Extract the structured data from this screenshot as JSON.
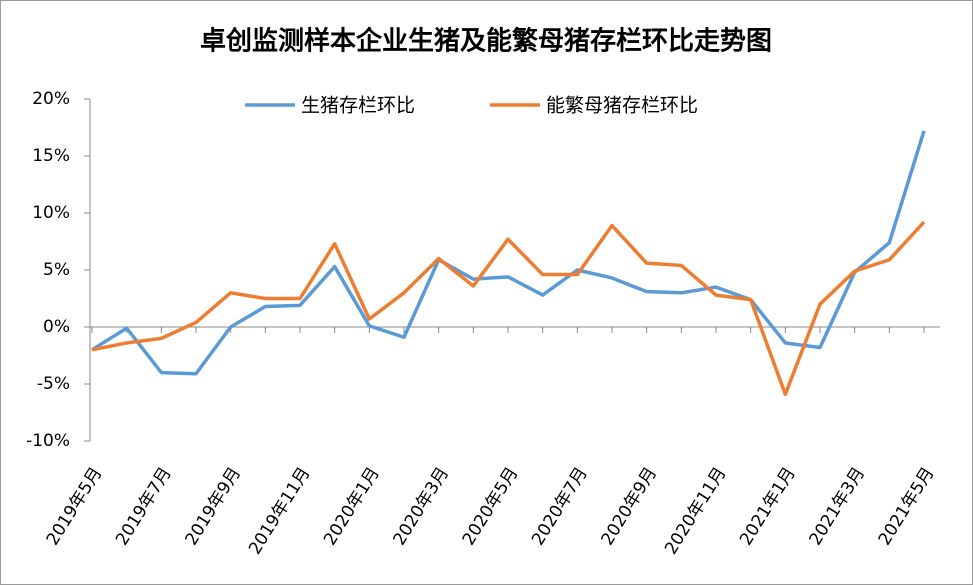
{
  "chart_data": {
    "type": "line",
    "title": "卓创监测样本企业生猪及能繁母猪存栏环比走势图",
    "categories": [
      "2019年5月",
      null,
      "2019年7月",
      null,
      "2019年9月",
      null,
      "2019年11月",
      null,
      "2020年1月",
      null,
      "2020年3月",
      null,
      "2020年5月",
      null,
      "2020年7月",
      null,
      "2020年9月",
      null,
      "2020年11月",
      null,
      "2021年1月",
      null,
      "2021年3月",
      null,
      "2021年5月"
    ],
    "series": [
      {
        "name": "生猪存栏环比",
        "color": "#5b9bd5",
        "values": [
          -2.0,
          -0.1,
          -4.0,
          -4.1,
          0.0,
          1.8,
          1.9,
          5.3,
          0.1,
          -0.9,
          5.9,
          4.2,
          4.4,
          2.8,
          5.0,
          4.3,
          3.1,
          3.0,
          3.5,
          2.4,
          -1.4,
          -1.8,
          4.8,
          7.4,
          17.2
        ]
      },
      {
        "name": "能繁母猪存栏环比",
        "color": "#ed7d31",
        "values": [
          -2.0,
          -1.4,
          -1.0,
          0.4,
          3.0,
          2.5,
          2.5,
          7.3,
          0.7,
          3.0,
          6.0,
          3.6,
          7.7,
          4.6,
          4.6,
          8.9,
          5.6,
          5.4,
          2.8,
          2.4,
          -5.9,
          2.0,
          4.9,
          5.9,
          9.2
        ]
      }
    ],
    "ylim": [
      -10,
      20
    ],
    "yticks": [
      {
        "value": -10,
        "label": "-10%"
      },
      {
        "value": -5,
        "label": "-5%"
      },
      {
        "value": 0,
        "label": "0%"
      },
      {
        "value": 5,
        "label": "5%"
      },
      {
        "value": 10,
        "label": "10%"
      },
      {
        "value": 15,
        "label": "15%"
      },
      {
        "value": 20,
        "label": "20%"
      }
    ],
    "legend": "top"
  }
}
